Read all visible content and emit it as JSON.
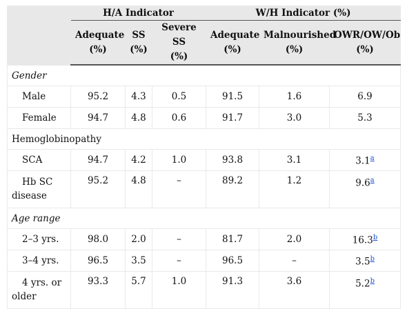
{
  "header": {
    "group_ha": "H/A Indicator",
    "group_wh": "W/H Indicator (%)",
    "columns": [
      {
        "line1": "Adequate",
        "line2": "(%)"
      },
      {
        "line1": "SS",
        "line2": "(%)"
      },
      {
        "line1": "Severe SS",
        "line2": "(%)"
      },
      {
        "line1": "Adequate",
        "line2": "(%)"
      },
      {
        "line1": "Malnourished",
        "line2": "(%)"
      },
      {
        "line1": "OWR/OW/Ob",
        "line2": "(%)"
      }
    ]
  },
  "sections": {
    "gender": "Gender",
    "hemoglobinopathy": "Hemoglobinopathy",
    "age_range": "Age range"
  },
  "rows": {
    "male": {
      "label": "Male",
      "values": [
        "95.2",
        "4.3",
        "0.5",
        "91.5",
        "1.6",
        "6.9"
      ]
    },
    "female": {
      "label": "Female",
      "values": [
        "94.7",
        "4.8",
        "0.6",
        "91.7",
        "3.0",
        "5.3"
      ]
    },
    "sca": {
      "label": "SCA",
      "values": [
        "94.7",
        "4.2",
        "1.0",
        "93.8",
        "3.1",
        "3.1"
      ],
      "note": "a"
    },
    "hbsc": {
      "label_line1": "Hb SC",
      "label_line2": "disease",
      "values": [
        "95.2",
        "4.8",
        "–",
        "89.2",
        "1.2",
        "9.6"
      ],
      "note": "a"
    },
    "age23": {
      "label": "2–3 yrs.",
      "values": [
        "98.0",
        "2.0",
        "–",
        "81.7",
        "2.0",
        "16.3"
      ],
      "note": "b"
    },
    "age34": {
      "label": "3–4 yrs.",
      "values": [
        "96.5",
        "3.5",
        "–",
        "96.5",
        "–",
        "3.5"
      ],
      "note": "b"
    },
    "age4": {
      "label_line1": "4 yrs. or",
      "label_line2": "older",
      "values": [
        "93.3",
        "5.7",
        "1.0",
        "91.3",
        "3.6",
        "5.2"
      ],
      "note": "b"
    }
  },
  "colors": {
    "header_bg": "#e8e8e8",
    "link": "#1a4fd6"
  }
}
